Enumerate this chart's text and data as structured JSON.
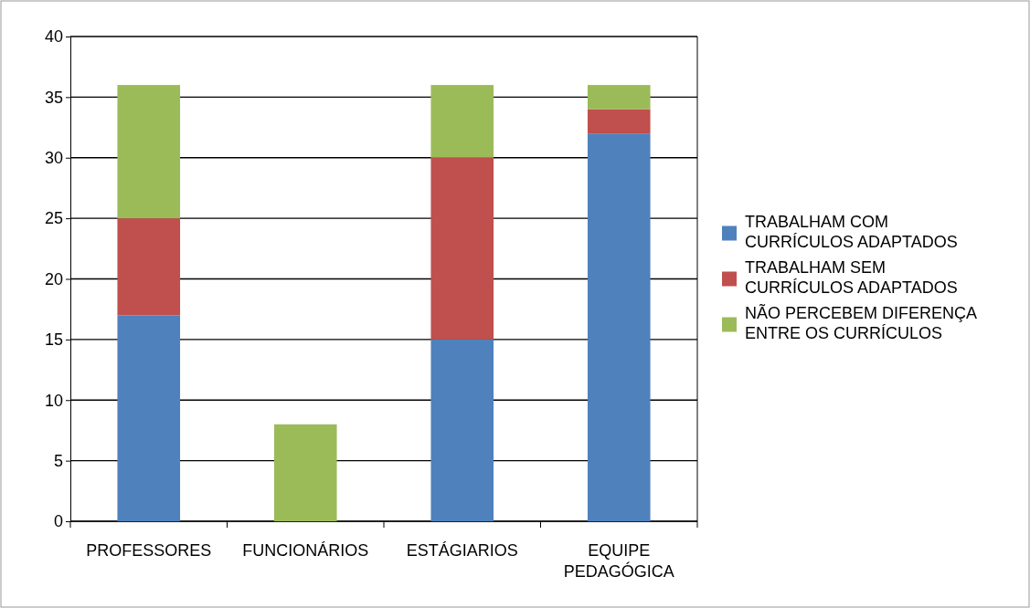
{
  "chart_data": {
    "type": "bar",
    "stacked": true,
    "categories": [
      "PROFESSORES",
      "FUNCIONÁRIOS",
      "ESTÁGIARIOS",
      "EQUIPE PEDAGÓGICA"
    ],
    "series": [
      {
        "name": "TRABALHAM COM CURRÍCULOS ADAPTADOS",
        "color": "#4f81bd",
        "values": [
          17,
          0,
          15,
          32
        ]
      },
      {
        "name": "TRABALHAM SEM CURRÍCULOS ADAPTADOS",
        "color": "#c0504d",
        "values": [
          8,
          0,
          15,
          2
        ]
      },
      {
        "name": "NÃO PERCEBEM DIFERENÇA ENTRE OS CURRÍCULOS",
        "color": "#9bbb59",
        "values": [
          11,
          8,
          6,
          2
        ]
      }
    ],
    "ylim": [
      0,
      40
    ],
    "yticks": [
      0,
      5,
      10,
      15,
      20,
      25,
      30,
      35,
      40
    ],
    "grid": "y",
    "legend": "right"
  }
}
